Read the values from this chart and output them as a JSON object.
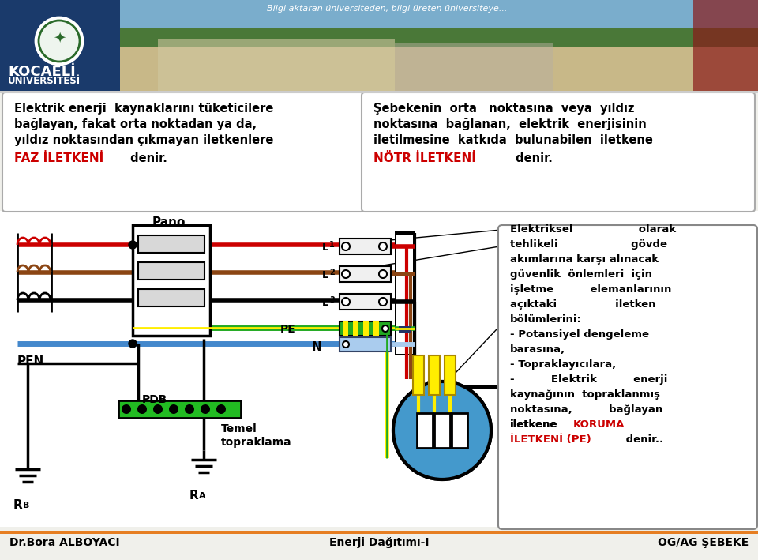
{
  "bg_color": "#f0f0eb",
  "header_blue": "#1a3a6b",
  "header_text": "Bilgi aktaran üniversiteden, bilgi üreten üniversiteye...",
  "uni_name": "KOCAELİ",
  "uni_sub": "ÜNİVERSİTESİ",
  "box1_lines": [
    "Elektrik enerji  kaynaklarını tüketicilere",
    "bağlayan, fakat orta noktadan ya da,",
    "yıldız noktasından çıkmayan iletkenlere"
  ],
  "box1_red": "FAZ İLETKENİ",
  "box1_end": " denir.",
  "box2_lines": [
    "Şebekenin  orta   noktasına  veya  yıldız",
    "noktasına  bağlanan,  elektrik  enerjisinin",
    "iletilmesine  katkıda  bulunabilen  iletkene"
  ],
  "box2_red": "NÖTR İLETKENİ",
  "box2_end": " denir.",
  "right_lines_black": [
    "Elektriksel                  olarak",
    "tehlikeli                    gövde",
    "akımlarına karşı alınacak",
    "güvenlik  önlemleri  için",
    "işletme          elemanlarının",
    "açıktaki                iletken",
    "bölümlerini:",
    "- Potansiyel dengeleme",
    "barasına,",
    "- Topraklayıcılara,",
    "-          Elektrik          enerji",
    "kaynağının  topraklanmış",
    "noktasına,          bağlayan",
    "iletkene"
  ],
  "right_red1": "KORUMA",
  "right_red2": "İLETKENİ (PE)",
  "right_end": " denir..",
  "footer_left": "Dr.Bora ALBOYACI",
  "footer_center": "Enerji Dağıtımı-I",
  "footer_right": "OG/AG ŞEBEKE",
  "footer_bar": "#e67e22",
  "red": "#cc0000",
  "brown": "#8B4513",
  "black": "#000000",
  "white": "#ffffff",
  "green": "#22aa22",
  "yellow": "#ffee00",
  "blue_wire": "#4488cc",
  "blue_light": "#5599dd",
  "blue_neutral": "#aaccee",
  "dark_blue_bar": "#223366",
  "green_bar": "#22bb22"
}
